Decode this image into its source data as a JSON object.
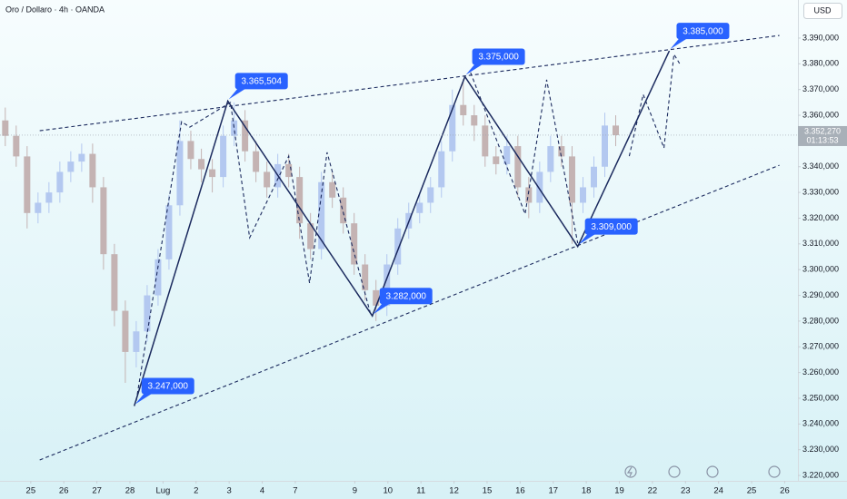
{
  "chart_data": {
    "type": "candlestick",
    "title": "Oro / Dollaro · 4h · OANDA",
    "currency": "USD",
    "last_price": {
      "value": 3352.27,
      "label": "3.352,270"
    },
    "countdown": "01:13:53",
    "up_color": "#b3c8f0",
    "down_color": "#c4b3b3",
    "line_color": "#1b2a5e",
    "label_color": "#2962ff",
    "xlim": [
      -0.93,
      23.2
    ],
    "ylim": [
      3217.9,
      3404.8
    ],
    "xticks": [
      {
        "value": 0,
        "label": "25"
      },
      {
        "value": 1,
        "label": "26"
      },
      {
        "value": 2,
        "label": "27"
      },
      {
        "value": 3,
        "label": "28"
      },
      {
        "value": 4,
        "label": "Lug"
      },
      {
        "value": 5,
        "label": "2"
      },
      {
        "value": 6,
        "label": "3"
      },
      {
        "value": 7,
        "label": "4"
      },
      {
        "value": 8,
        "label": "7"
      },
      {
        "value": 9.8,
        "label": "9"
      },
      {
        "value": 10.8,
        "label": "10"
      },
      {
        "value": 11.8,
        "label": "11"
      },
      {
        "value": 12.8,
        "label": "12"
      },
      {
        "value": 13.8,
        "label": "15"
      },
      {
        "value": 14.8,
        "label": "16"
      },
      {
        "value": 15.8,
        "label": "17"
      },
      {
        "value": 16.8,
        "label": "18"
      },
      {
        "value": 17.8,
        "label": "19"
      },
      {
        "value": 18.8,
        "label": "22"
      },
      {
        "value": 19.8,
        "label": "23"
      },
      {
        "value": 20.8,
        "label": "24"
      },
      {
        "value": 21.8,
        "label": "25"
      },
      {
        "value": 22.8,
        "label": "26"
      }
    ],
    "yticks": [
      {
        "value": 3220,
        "label": "3.220,000"
      },
      {
        "value": 3230,
        "label": "3.230,000"
      },
      {
        "value": 3240,
        "label": "3.240,000"
      },
      {
        "value": 3250,
        "label": "3.250,000"
      },
      {
        "value": 3260,
        "label": "3.260,000"
      },
      {
        "value": 3270,
        "label": "3.270,000"
      },
      {
        "value": 3280,
        "label": "3.280,000"
      },
      {
        "value": 3290,
        "label": "3.290,000"
      },
      {
        "value": 3300,
        "label": "3.300,000"
      },
      {
        "value": 3310,
        "label": "3.310,000"
      },
      {
        "value": 3320,
        "label": "3.320,000"
      },
      {
        "value": 3330,
        "label": "3.330,000"
      },
      {
        "value": 3340,
        "label": "3.340,000"
      },
      {
        "value": 3350,
        "label": "3.350,000"
      },
      {
        "value": 3360,
        "label": "3.360,000"
      },
      {
        "value": 3370,
        "label": "3.370,000"
      },
      {
        "value": 3380,
        "label": "3.380,000"
      },
      {
        "value": 3390,
        "label": "3.390,000"
      }
    ],
    "x": [
      -0.77,
      -0.44,
      -0.11,
      0.22,
      0.55,
      0.88,
      1.21,
      1.54,
      1.87,
      2.2,
      2.53,
      2.86,
      3.19,
      3.52,
      3.85,
      4.18,
      4.51,
      4.84,
      5.16,
      5.49,
      5.82,
      6.15,
      6.48,
      6.81,
      7.14,
      7.47,
      7.8,
      8.13,
      8.46,
      8.79,
      9.12,
      9.45,
      9.78,
      10.11,
      10.44,
      10.77,
      11.1,
      11.43,
      11.76,
      12.09,
      12.42,
      12.75,
      13.08,
      13.41,
      13.74,
      14.07,
      14.4,
      14.73,
      15.06,
      15.39,
      15.72,
      16.05,
      16.37,
      16.7,
      17.03,
      17.36,
      17.69
    ],
    "open": [
      3358,
      3352,
      3344,
      3322,
      3326,
      3330,
      3338,
      3342,
      3345,
      3332,
      3306,
      3284,
      3268,
      3276,
      3290,
      3304,
      3325,
      3350,
      3343,
      3339,
      3336,
      3352,
      3358,
      3346,
      3338,
      3332,
      3341,
      3336,
      3318,
      3308,
      3334,
      3328,
      3318,
      3302,
      3292,
      3286,
      3302,
      3316,
      3322,
      3326,
      3332,
      3346,
      3364,
      3360,
      3356,
      3344,
      3341,
      3348,
      3332,
      3326,
      3338,
      3348,
      3344,
      3326,
      3332,
      3340,
      3356
    ],
    "high": [
      3363,
      3356,
      3348,
      3330,
      3334,
      3342,
      3346,
      3349,
      3349,
      3336,
      3310,
      3288,
      3280,
      3294,
      3308,
      3329,
      3358,
      3354,
      3347,
      3343,
      3356,
      3365,
      3362,
      3350,
      3342,
      3345,
      3345,
      3340,
      3322,
      3338,
      3338,
      3332,
      3322,
      3306,
      3296,
      3306,
      3320,
      3326,
      3330,
      3336,
      3350,
      3370,
      3374,
      3364,
      3360,
      3348,
      3352,
      3352,
      3336,
      3342,
      3352,
      3352,
      3348,
      3336,
      3344,
      3361,
      3360
    ],
    "low": [
      3348,
      3340,
      3316,
      3318,
      3322,
      3326,
      3334,
      3338,
      3326,
      3300,
      3278,
      3256,
      3262,
      3272,
      3286,
      3300,
      3321,
      3339,
      3334,
      3330,
      3332,
      3348,
      3342,
      3334,
      3328,
      3328,
      3332,
      3312,
      3304,
      3304,
      3324,
      3314,
      3298,
      3288,
      3280,
      3282,
      3298,
      3312,
      3318,
      3322,
      3328,
      3342,
      3356,
      3350,
      3340,
      3337,
      3337,
      3328,
      3320,
      3322,
      3334,
      3340,
      3310,
      3322,
      3328,
      3336,
      3348
    ],
    "close": [
      3352,
      3344,
      3322,
      3326,
      3330,
      3338,
      3342,
      3345,
      3332,
      3306,
      3284,
      3268,
      3276,
      3290,
      3304,
      3325,
      3350,
      3343,
      3339,
      3336,
      3352,
      3358,
      3346,
      3338,
      3332,
      3341,
      3336,
      3318,
      3308,
      3334,
      3328,
      3318,
      3302,
      3292,
      3286,
      3302,
      3316,
      3322,
      3326,
      3332,
      3346,
      3364,
      3360,
      3356,
      3344,
      3341,
      3348,
      3332,
      3326,
      3338,
      3348,
      3344,
      3326,
      3332,
      3340,
      3356,
      3352.27
    ],
    "annotations": [
      {
        "x": 3.13,
        "value": 3247,
        "label": "3.247,000"
      },
      {
        "x": 5.96,
        "value": 3365.504,
        "label": "3.365,504"
      },
      {
        "x": 10.33,
        "value": 3282,
        "label": "3.282,000"
      },
      {
        "x": 13.13,
        "value": 3375,
        "label": "3.375,000"
      },
      {
        "x": 16.54,
        "value": 3309,
        "label": "3.309,000"
      },
      {
        "x": 19.31,
        "value": 3385,
        "label": "3.385,000"
      }
    ],
    "trendlines": [
      {
        "x": [
          0.27,
          22.64
        ],
        "values": [
          3354,
          3391
        ]
      },
      {
        "x": [
          0.27,
          22.64
        ],
        "values": [
          3226,
          3340.6
        ]
      }
    ],
    "projection": {
      "x": [
        3.19,
        4.56,
        4.81,
        6.04,
        6.62,
        7.8,
        8.43,
        8.96,
        10.27,
        null,
        13.3,
        14.95,
        15.6,
        16.54,
        null,
        18.1,
        18.52,
        19.15,
        19.45,
        19.62
      ],
      "values": [
        3249,
        3357.5,
        3355.4,
        3365,
        3312.4,
        3344.1,
        3294.8,
        3345.6,
        3283.1,
        null,
        3376.6,
        3321.6,
        3373.8,
        3310.3,
        null,
        3344.1,
        3368.1,
        3347.3,
        3383.7,
        3380.1
      ]
    }
  }
}
